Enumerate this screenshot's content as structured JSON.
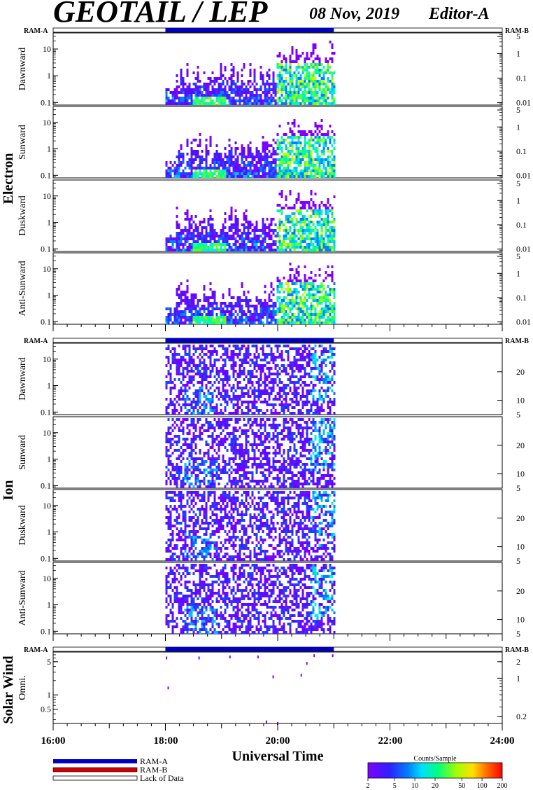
{
  "header": {
    "title": "GEOTAIL / LEP",
    "date": "08 Nov, 2019",
    "editor": "Editor-A"
  },
  "legend": {
    "ram_a_label": "RAM-A",
    "ram_b_label": "RAM-B",
    "lack_label": "Lack of Data",
    "ram_a_color": "#0000c0",
    "ram_b_color": "#d00000"
  },
  "colorbar": {
    "title": "Counts/Sample",
    "ticks": [
      "2",
      "5",
      "10",
      "20",
      "50",
      "100",
      "200"
    ],
    "tick_values": [
      2,
      5,
      10,
      20,
      50,
      100,
      200
    ],
    "range": [
      2,
      200
    ],
    "scale": "log"
  },
  "chart_data": {
    "type": "heatmap",
    "xlabel": "Universal Time",
    "x_ticks": [
      "16:00",
      "18:00",
      "20:00",
      "22:00",
      "24:00"
    ],
    "x_range_hours": [
      16,
      24
    ],
    "data_coverage_hours": [
      18.0,
      21.0
    ],
    "ram_a_coverage_hours": [
      18.0,
      21.0
    ],
    "groups": [
      {
        "name": "Electron",
        "ram_a_label": "RAM-A",
        "ram_b_label": "RAM-B",
        "y_scale": "log",
        "right_scale": "log",
        "left_ticks": [
          "0.1",
          "1",
          "10"
        ],
        "left_tick_values": [
          0.1,
          1,
          10
        ],
        "left_range": [
          0.08,
          40
        ],
        "right_ticks": [
          "5",
          "1",
          "0.1",
          "0.01"
        ],
        "right_tick_values": [
          5,
          1,
          0.1,
          0.01
        ],
        "right_range": [
          0.008,
          7
        ],
        "channels": [
          {
            "name": "Dawnward"
          },
          {
            "name": "Sunward"
          },
          {
            "name": "Duskward"
          },
          {
            "name": "Anti-Sunward"
          }
        ]
      },
      {
        "name": "Ion",
        "ram_a_label": "RAM-A",
        "ram_b_label": "RAM-B",
        "y_scale": "log",
        "right_scale": "linear",
        "left_ticks": [
          "0.1",
          "1",
          "10"
        ],
        "left_tick_values": [
          0.1,
          1,
          10
        ],
        "left_range": [
          0.08,
          40
        ],
        "right_ticks": [
          "5",
          "10",
          "20"
        ],
        "right_tick_values": [
          5,
          10,
          20
        ],
        "right_range": [
          5,
          30
        ],
        "channels": [
          {
            "name": "Dawnward"
          },
          {
            "name": "Sunward"
          },
          {
            "name": "Duskward"
          },
          {
            "name": "Anti-Sunward"
          }
        ]
      },
      {
        "name": "Solar Wind",
        "ram_a_label": "RAM-A",
        "ram_b_label": "RAM-B",
        "y_scale": "log",
        "right_scale": "log",
        "left_ticks": [
          "0.5",
          "1",
          "5"
        ],
        "left_tick_values": [
          0.5,
          1,
          5
        ],
        "left_range": [
          0.25,
          8
        ],
        "right_ticks": [
          "2",
          "1",
          "0.2"
        ],
        "right_tick_values": [
          2,
          1,
          0.2
        ],
        "right_range": [
          0.15,
          3
        ],
        "channels": [
          {
            "name": "Omni."
          }
        ],
        "sparse_points": [
          {
            "t": 18.02,
            "y": 6.0
          },
          {
            "t": 18.05,
            "y": 1.4
          },
          {
            "t": 18.6,
            "y": 6.0
          },
          {
            "t": 19.15,
            "y": 6.3
          },
          {
            "t": 19.65,
            "y": 6.3
          },
          {
            "t": 19.8,
            "y": 0.27
          },
          {
            "t": 19.92,
            "y": 2.4
          },
          {
            "t": 20.0,
            "y": 0.25
          },
          {
            "t": 20.42,
            "y": 2.6
          },
          {
            "t": 20.52,
            "y": 4.6
          },
          {
            "t": 20.65,
            "y": 6.7
          },
          {
            "t": 20.98,
            "y": 6.7
          }
        ]
      }
    ]
  }
}
